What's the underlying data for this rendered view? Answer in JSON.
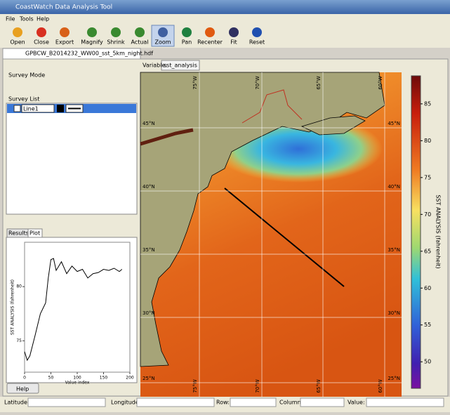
{
  "window": {
    "title": "CoastWatch Data Analysis Tool"
  },
  "menu": [
    "File",
    "Tools",
    "Help"
  ],
  "toolbar": [
    "Open",
    "Close",
    "Export",
    "Magnify",
    "Shrink",
    "Actual",
    "Zoom",
    "Pan",
    "Recenter",
    "Fit",
    "Reset"
  ],
  "file_tab": "GPBCW_B2014232_WW00_sst_5km_night.hdf",
  "survey": {
    "mode_label": "Survey Mode",
    "list_label": "Survey List",
    "rows": [
      "Line1"
    ]
  },
  "plot_tabs": [
    "Results",
    "Plot"
  ],
  "plot": {
    "x": [
      0,
      5,
      10,
      20,
      30,
      40,
      45,
      50,
      55,
      60,
      70,
      80,
      90,
      100,
      110,
      120,
      130,
      140,
      150,
      160,
      170,
      180,
      185
    ],
    "values": [
      74,
      73.2,
      73.6,
      75.5,
      77.5,
      78.5,
      80.8,
      82.5,
      82.6,
      81.5,
      82.3,
      81.2,
      81.9,
      81.4,
      81.6,
      80.8,
      81.2,
      81.3,
      81.6,
      81.5,
      81.7,
      81.4,
      81.6
    ],
    "xlim": [
      0,
      200
    ],
    "ylim": [
      72.1,
      84.1
    ],
    "xticks": [
      0,
      50,
      100,
      150,
      200
    ],
    "yticks": [
      75,
      80
    ],
    "xlabel": "Value index",
    "ylabel": "SST ANALYSIS (fahrenheit)"
  },
  "help_button": "Help",
  "variable": {
    "label": "Variable:",
    "value": "sst_analysis"
  },
  "map": {
    "lon_labels": [
      "75°W",
      "70°W",
      "65°W",
      "60°W"
    ],
    "lat_labels": [
      "45°N",
      "40°N",
      "35°N",
      "30°N",
      "25°N"
    ]
  },
  "colorbar": {
    "label": "SST ANALYSIS (fahrenheit)",
    "range": [
      46.4,
      88.8
    ],
    "ticks": [
      50,
      55,
      60,
      65,
      70,
      75,
      80,
      85
    ]
  },
  "status": [
    "Latitude:",
    "Longitude:",
    "Row:",
    "Column:",
    "Value:"
  ]
}
